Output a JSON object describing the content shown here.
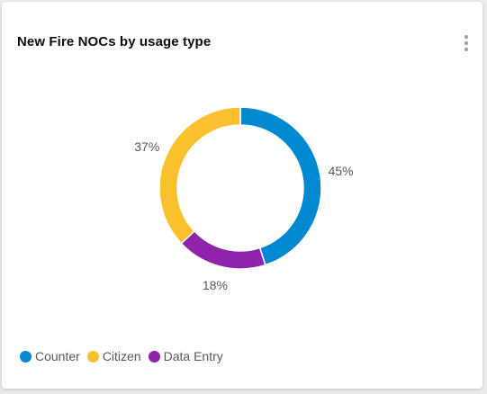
{
  "card": {
    "title": "New Fire NOCs by usage type",
    "menu_icon": "more-vertical-icon"
  },
  "chart_data": {
    "type": "pie",
    "variant": "donut",
    "title": "New Fire NOCs by usage type",
    "series": [
      {
        "name": "Counter",
        "value": 45,
        "label": "45%",
        "color": "#0089d1"
      },
      {
        "name": "Data Entry",
        "value": 18,
        "label": "18%",
        "color": "#8e24aa"
      },
      {
        "name": "Citizen",
        "value": 37,
        "label": "37%",
        "color": "#fbc02d"
      }
    ],
    "legend_placement": "bottom-left",
    "legend": [
      {
        "name": "Counter",
        "color": "#0089d1"
      },
      {
        "name": "Citizen",
        "color": "#fbc02d"
      },
      {
        "name": "Data Entry",
        "color": "#8e24aa"
      }
    ]
  }
}
